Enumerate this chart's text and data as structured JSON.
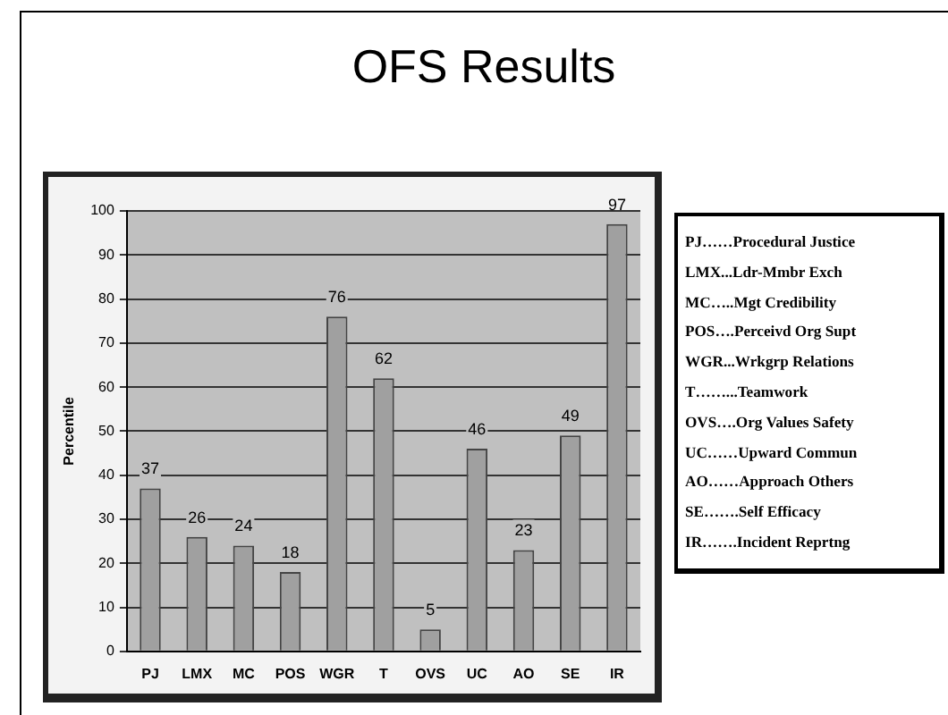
{
  "chart_data": {
    "type": "bar",
    "title": "OFS Results",
    "ylabel": "Percentile",
    "categories": [
      "PJ",
      "LMX",
      "MC",
      "POS",
      "WGR",
      "T",
      "OVS",
      "UC",
      "AO",
      "SE",
      "IR"
    ],
    "values": [
      37,
      26,
      24,
      18,
      76,
      62,
      5,
      46,
      23,
      49,
      97
    ],
    "color": "#a0a0a0",
    "ylim": [
      0,
      100
    ],
    "yticks": [
      0,
      10,
      20,
      30,
      40,
      50,
      60,
      70,
      80,
      90,
      100
    ],
    "grid": "y",
    "data_labels": true,
    "annotations": [
      "PJ……Procedural Justice",
      "LMX...Ldr-Mmbr Exch",
      "MC…..Mgt Credibility",
      "POS….Perceivd Org Supt",
      "WGR...Wrkgrp Relations",
      "T……...Teamwork",
      "OVS….Org Values Safety",
      "UC……Upward Commun",
      "AO……Approach Others",
      "SE…….Self Efficacy",
      "IR…….Incident Reprtng"
    ]
  }
}
